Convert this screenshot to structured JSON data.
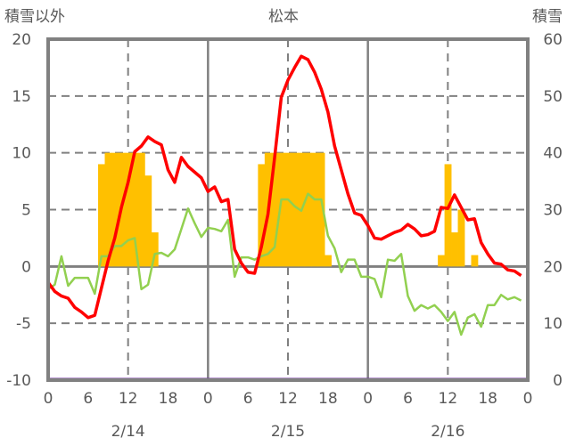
{
  "chart_data": {
    "type": "bar+line",
    "title": "松本",
    "ylabel_left": "積雪以外",
    "ylabel_right": "積雪",
    "ylim_left": [
      -10,
      20
    ],
    "ylim_right": [
      0,
      60
    ],
    "yticks_left": [
      "20",
      "15",
      "10",
      "5",
      "0",
      "-5",
      "-10"
    ],
    "yticks_right": [
      "60",
      "50",
      "40",
      "30",
      "20",
      "10",
      "0"
    ],
    "xtick_labels": [
      "0",
      "6",
      "12",
      "18",
      "0",
      "6",
      "12",
      "18",
      "0",
      "6",
      "12",
      "18",
      "0"
    ],
    "date_labels": [
      "2/14",
      "2/15",
      "2/16"
    ],
    "grid": true,
    "x_unit": "hours since 2/14 00:00",
    "colors": {
      "precip": "#FFC000",
      "temperature": "#FF0000",
      "dewpoint": "#92D050",
      "snow_depth": "#7030A0",
      "axis": "#808080"
    },
    "series": [
      {
        "name": "precipitation",
        "axis": "left",
        "kind": "bar",
        "x": [
          8,
          9,
          10,
          11,
          12,
          13,
          14,
          15,
          16,
          32,
          33,
          34,
          35,
          36,
          37,
          38,
          39,
          40,
          41,
          42,
          59,
          60,
          61,
          62,
          64
        ],
        "values": [
          9,
          10,
          10,
          10,
          10,
          10,
          10,
          8,
          3,
          9,
          10,
          10,
          10,
          10,
          10,
          10,
          10,
          10,
          10,
          1,
          1,
          9,
          3,
          5,
          1
        ]
      },
      {
        "name": "temperature",
        "axis": "left",
        "kind": "line",
        "values": [
          -1.4,
          -2.2,
          -2.6,
          -2.8,
          -3.6,
          -4.0,
          -4.5,
          -4.3,
          -1.9,
          0.5,
          2.5,
          5.2,
          7.4,
          10.1,
          10.6,
          11.4,
          11.0,
          10.7,
          8.5,
          7.4,
          9.6,
          8.8,
          8.3,
          7.8,
          6.6,
          7.0,
          5.7,
          5.9,
          1.5,
          0.3,
          -0.5,
          -0.6,
          1.7,
          4.6,
          9.6,
          14.9,
          16.4,
          17.5,
          18.5,
          18.2,
          17.1,
          15.6,
          13.6,
          10.6,
          8.5,
          6.4,
          4.7,
          4.5,
          3.6,
          2.5,
          2.4,
          2.7,
          3.0,
          3.2,
          3.7,
          3.3,
          2.7,
          2.8,
          3.1,
          5.2,
          5.1,
          6.3,
          5.2,
          4.1,
          4.2,
          2.1,
          1.1,
          0.3,
          0.2,
          -0.3,
          -0.4,
          -0.8
        ]
      },
      {
        "name": "dewpoint",
        "axis": "left",
        "kind": "line",
        "values": [
          -2.0,
          -1.6,
          0.9,
          -1.7,
          -1.0,
          -1.0,
          -1.0,
          -2.4,
          0.9,
          0.9,
          1.8,
          1.8,
          2.3,
          2.5,
          -2.0,
          -1.6,
          1.1,
          1.2,
          0.9,
          1.5,
          3.3,
          5.1,
          3.8,
          2.6,
          3.4,
          3.3,
          3.1,
          4.1,
          -0.9,
          0.8,
          0.8,
          0.6,
          0.9,
          1.1,
          1.7,
          5.9,
          5.9,
          5.3,
          4.9,
          6.4,
          5.9,
          5.9,
          2.7,
          1.6,
          -0.5,
          0.6,
          0.6,
          -0.9,
          -0.9,
          -1.1,
          -2.7,
          0.6,
          0.5,
          1.1,
          -2.6,
          -3.9,
          -3.4,
          -3.7,
          -3.4,
          -4.0,
          -4.8,
          -4.0,
          -6.0,
          -4.5,
          -4.2,
          -5.3,
          -3.4,
          -3.4,
          -2.5,
          -2.9,
          -2.7,
          -3.0
        ]
      },
      {
        "name": "snow_depth",
        "axis": "right",
        "kind": "line",
        "x": [
          0,
          72
        ],
        "values": [
          0,
          0
        ]
      }
    ]
  }
}
